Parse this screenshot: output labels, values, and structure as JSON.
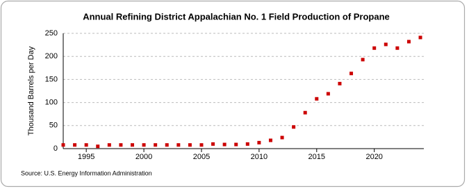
{
  "chart_data": {
    "type": "scatter",
    "title": "Annual Refining District Appalachian No. 1 Field Production of Propane",
    "y_label": "Thousand Barrels per Day",
    "source": "Source: U.S. Energy Information Administration",
    "x": [
      1993,
      1994,
      1995,
      1996,
      1997,
      1998,
      1999,
      2000,
      2001,
      2002,
      2003,
      2004,
      2005,
      2006,
      2007,
      2008,
      2009,
      2010,
      2011,
      2012,
      2013,
      2014,
      2015,
      2016,
      2017,
      2018,
      2019,
      2020,
      2021,
      2022,
      2023,
      2024
    ],
    "series": [
      {
        "name": "Propane",
        "color": "#cc0000",
        "values": [
          8,
          8,
          8,
          5,
          8,
          8,
          8,
          8,
          8,
          8,
          8,
          8,
          8,
          10,
          9,
          9,
          10,
          13,
          18,
          24,
          47,
          78,
          108,
          119,
          141,
          163,
          193,
          218,
          226,
          218,
          232,
          241
        ]
      }
    ],
    "xlim": [
      1993,
      2024.3
    ],
    "xticks": [
      1995,
      2000,
      2005,
      2010,
      2015,
      2020
    ],
    "ylim": [
      0,
      250
    ],
    "yticks": [
      0,
      50,
      100,
      150,
      200,
      250
    ],
    "grid": true
  }
}
